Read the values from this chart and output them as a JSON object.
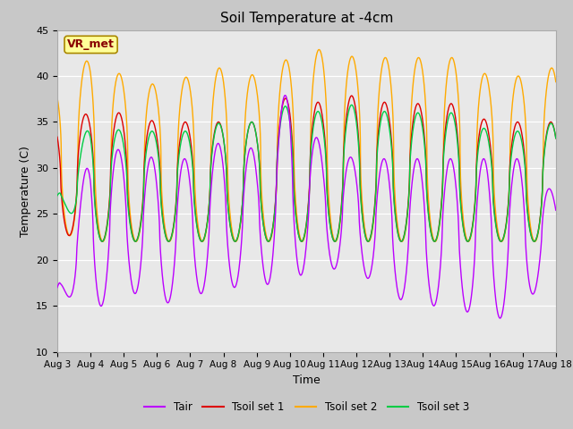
{
  "title": "Soil Temperature at -4cm",
  "xlabel": "Time",
  "ylabel": "Temperature (C)",
  "ylim": [
    10,
    45
  ],
  "colors": {
    "Tair": "#bb00ff",
    "Tsoil_set1": "#dd0000",
    "Tsoil_set2": "#ffaa00",
    "Tsoil_set3": "#00cc44"
  },
  "fig_bg": "#c8c8c8",
  "plot_bg": "#e8e8e8",
  "annotation_text": "VR_met",
  "annotation_fg": "#880000",
  "annotation_bg": "#ffff99",
  "annotation_border": "#aa8800",
  "legend_labels": [
    "Tair",
    "Tsoil set 1",
    "Tsoil set 2",
    "Tsoil set 3"
  ]
}
